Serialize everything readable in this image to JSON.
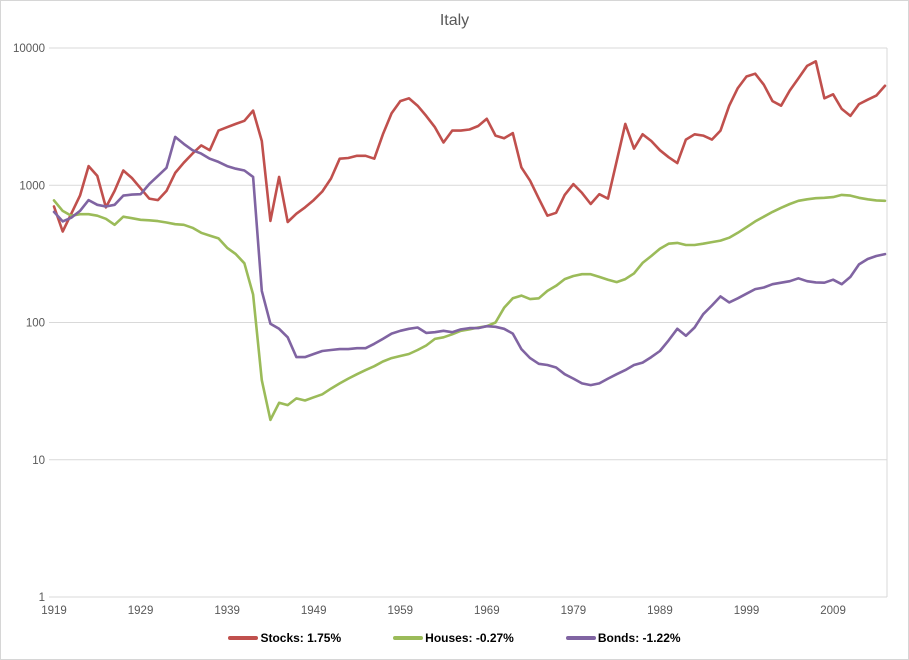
{
  "chart_data": {
    "type": "line",
    "title": "Italy",
    "xlabel": "",
    "ylabel": "",
    "y_scale": "log",
    "ylim": [
      1,
      10000
    ],
    "y_ticks": [
      1,
      10,
      100,
      1000,
      10000
    ],
    "x_start_year": 1919,
    "x_end_year": 2015,
    "x_ticks": [
      1919,
      1929,
      1939,
      1949,
      1959,
      1969,
      1979,
      1989,
      1999,
      2009
    ],
    "grid": "horizontal-only",
    "legend_position": "bottom",
    "colors": {
      "gridline": "#d9d9d9",
      "axis_text": "#595959",
      "title_text": "#595959",
      "legend_text": "#000000",
      "stocks": "#C0504D",
      "houses": "#9BBB59",
      "bonds": "#8064A2"
    },
    "series": [
      {
        "name": "Stocks: 1.75%",
        "color": "#C0504D",
        "first_year": 1919,
        "values": [
          700,
          460,
          620,
          840,
          1380,
          1170,
          690,
          910,
          1280,
          1130,
          950,
          800,
          780,
          910,
          1230,
          1460,
          1700,
          1950,
          1800,
          2500,
          2650,
          2800,
          2950,
          3500,
          2100,
          550,
          1150,
          540,
          620,
          690,
          780,
          900,
          1120,
          1560,
          1580,
          1640,
          1640,
          1560,
          2350,
          3350,
          4100,
          4300,
          3800,
          3200,
          2650,
          2050,
          2500,
          2500,
          2550,
          2700,
          3050,
          2300,
          2200,
          2400,
          1350,
          1080,
          800,
          600,
          630,
          850,
          1020,
          880,
          730,
          860,
          800,
          1500,
          2800,
          1850,
          2350,
          2100,
          1800,
          1600,
          1450,
          2150,
          2350,
          2300,
          2150,
          2500,
          3800,
          5100,
          6200,
          6500,
          5400,
          4100,
          3800,
          4900,
          6000,
          7400,
          8000,
          4300,
          4600,
          3600,
          3200,
          3900,
          4200,
          4500,
          5300
        ]
      },
      {
        "name": "Houses: -0.27%",
        "color": "#9BBB59",
        "first_year": 1919,
        "values": [
          775,
          650,
          600,
          615,
          615,
          600,
          570,
          515,
          590,
          575,
          560,
          555,
          548,
          535,
          520,
          515,
          490,
          450,
          430,
          410,
          350,
          315,
          270,
          160,
          38,
          19.5,
          26,
          25,
          28,
          27,
          28.5,
          30,
          33,
          36,
          39,
          42,
          45,
          48,
          52,
          55,
          57,
          59,
          63,
          68,
          76,
          78,
          82,
          87,
          89,
          92,
          94,
          100,
          128,
          150,
          157,
          148,
          150,
          170,
          185,
          207,
          218,
          225,
          225,
          215,
          205,
          197,
          207,
          228,
          272,
          305,
          345,
          375,
          380,
          367,
          367,
          375,
          385,
          395,
          415,
          450,
          495,
          545,
          590,
          640,
          685,
          730,
          770,
          790,
          805,
          810,
          820,
          850,
          840,
          810,
          790,
          775,
          770
        ]
      },
      {
        "name": "Bonds: -1.22%",
        "color": "#8064A2",
        "first_year": 1919,
        "values": [
          640,
          545,
          580,
          650,
          780,
          720,
          700,
          720,
          840,
          855,
          860,
          1020,
          1170,
          1340,
          2250,
          2000,
          1800,
          1700,
          1560,
          1480,
          1380,
          1320,
          1280,
          1150,
          170,
          98,
          90,
          78,
          56,
          56,
          59,
          62,
          63,
          64,
          64,
          65,
          65,
          70,
          76,
          83,
          87,
          90,
          92,
          84,
          85,
          87,
          85,
          89,
          91,
          91,
          94,
          93,
          90,
          83,
          64,
          55,
          50,
          49,
          47,
          42,
          39,
          36,
          35,
          36,
          39,
          42,
          45,
          49,
          51,
          56,
          62,
          74,
          90,
          80,
          92,
          115,
          133,
          155,
          140,
          150,
          162,
          175,
          180,
          190,
          195,
          200,
          210,
          200,
          196,
          195,
          205,
          190,
          215,
          265,
          290,
          305,
          315
        ]
      }
    ]
  },
  "legend": {
    "stocks_label": "Stocks: 1.75%",
    "houses_label": "Houses: -0.27%",
    "bonds_label": "Bonds: -1.22%"
  }
}
